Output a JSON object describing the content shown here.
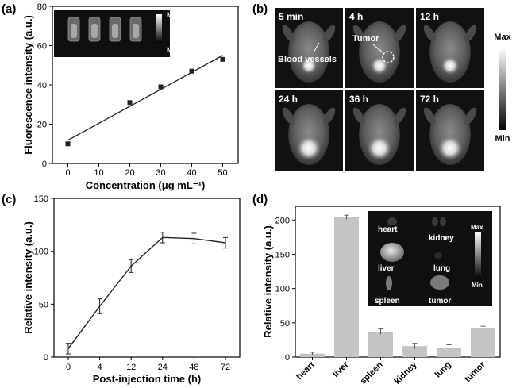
{
  "colors": {
    "line": "#222222",
    "bar": "#c4c4c4",
    "panel_bg": "#111111",
    "axis": "#000000"
  },
  "chart_data": [
    {
      "panel": "(a)",
      "type": "scatter",
      "xlabel": "Concentration (μg mL⁻¹)",
      "ylabel": "Fluorescence intensity (a.u.)",
      "xlim": [
        -5,
        55
      ],
      "ylim": [
        0,
        80
      ],
      "xticks": [
        0,
        10,
        20,
        30,
        40,
        50
      ],
      "yticks": [
        0,
        20,
        40,
        60,
        80
      ],
      "points": [
        {
          "x": 0,
          "y": 10
        },
        {
          "x": 20,
          "y": 31
        },
        {
          "x": 30,
          "y": 39
        },
        {
          "x": 40,
          "y": 47
        },
        {
          "x": 50,
          "y": 53
        }
      ],
      "fit_line": {
        "x": [
          0,
          50
        ],
        "y": [
          11.8,
          55
        ]
      },
      "inset": {
        "scale_max": "Max",
        "scale_min": "Min"
      },
      "grid": false
    },
    {
      "panel": "(b)",
      "type": "image-grid",
      "tiles": [
        "5 min",
        "4 h",
        "12 h",
        "24 h",
        "36 h",
        "72 h"
      ],
      "annotations": [
        "Blood vessels",
        "Tumor"
      ],
      "scale_max": "Max",
      "scale_min": "Min"
    },
    {
      "panel": "(c)",
      "type": "line",
      "xlabel": "Post-injection time (h)",
      "ylabel": "Relative intensity (a.u.)",
      "categories": [
        "0",
        "4",
        "12",
        "24",
        "48",
        "72"
      ],
      "values": [
        8,
        48,
        86,
        113,
        112,
        108
      ],
      "errors": [
        5,
        7,
        6,
        5,
        5,
        5
      ],
      "ylim": [
        0,
        150
      ],
      "yticks": [
        0,
        50,
        100,
        150
      ],
      "grid": false
    },
    {
      "panel": "(d)",
      "type": "bar",
      "ylabel": "Relative intensity (a.u.)",
      "categories": [
        "heart",
        "liver",
        "spleen",
        "kidney",
        "lung",
        "tumor"
      ],
      "values": [
        5,
        204,
        37,
        16,
        13,
        42
      ],
      "errors": [
        2,
        3,
        4,
        4,
        5,
        3
      ],
      "ylim": [
        0,
        220
      ],
      "yticks": [
        0,
        50,
        100,
        150,
        200
      ],
      "inset": {
        "labels": [
          "heart",
          "kidney",
          "liver",
          "lung",
          "spleen",
          "tumor"
        ],
        "scale_max": "Max",
        "scale_min": "Min"
      },
      "grid": false
    }
  ]
}
